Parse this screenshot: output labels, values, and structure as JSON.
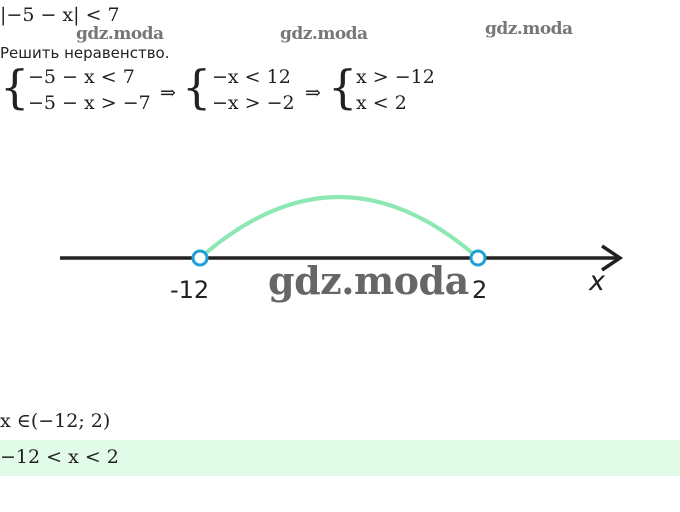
{
  "problem": "|−5 − x| < 7",
  "instruction": "Решить неравенство.",
  "watermark": "gdz.moda",
  "system1": [
    "−5 − x < 7",
    "−5 − x > −7"
  ],
  "system2": [
    "−x < 12",
    "−x > −2"
  ],
  "system3": [
    "x > −12",
    "x < 2"
  ],
  "arrow": "⇒",
  "numberline": {
    "left_label": "-12",
    "right_label": "2",
    "axis_label": "x",
    "arc_color": "#8ee8b4",
    "point_color": "#1e9fd8",
    "line_color": "#222222"
  },
  "answer_set": "x ∈(−12; 2)",
  "answer": "−12 < x < 2",
  "answer_bg": "#e2fbe8"
}
